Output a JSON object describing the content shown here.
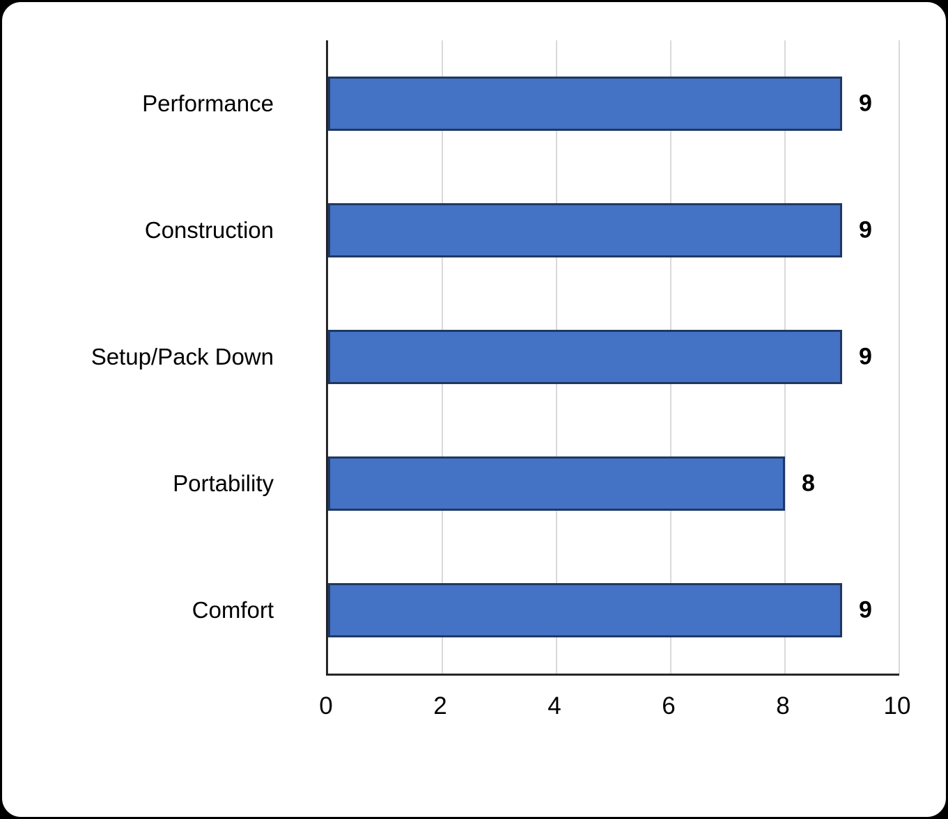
{
  "page": {
    "background_color": "#000000",
    "card_color": "#ffffff"
  },
  "chart_data": {
    "type": "bar",
    "orientation": "horizontal",
    "title": "",
    "xlabel": "",
    "ylabel": "",
    "categories": [
      "Performance",
      "Construction",
      "Setup/Pack Down",
      "Portability",
      "Comfort"
    ],
    "values": [
      9,
      9,
      9,
      8,
      9
    ],
    "data_labels": [
      "9",
      "9",
      "9",
      "8",
      "9"
    ],
    "xlim": [
      0,
      10
    ],
    "xticks": [
      0,
      2,
      4,
      6,
      8,
      10
    ],
    "grid": true,
    "legend": false,
    "bar_color": "#4472C4",
    "bar_border_color": "#1F3864",
    "gridline_color": "#D9D9D9",
    "axis_color": "#262626",
    "text_color": "#000000"
  }
}
